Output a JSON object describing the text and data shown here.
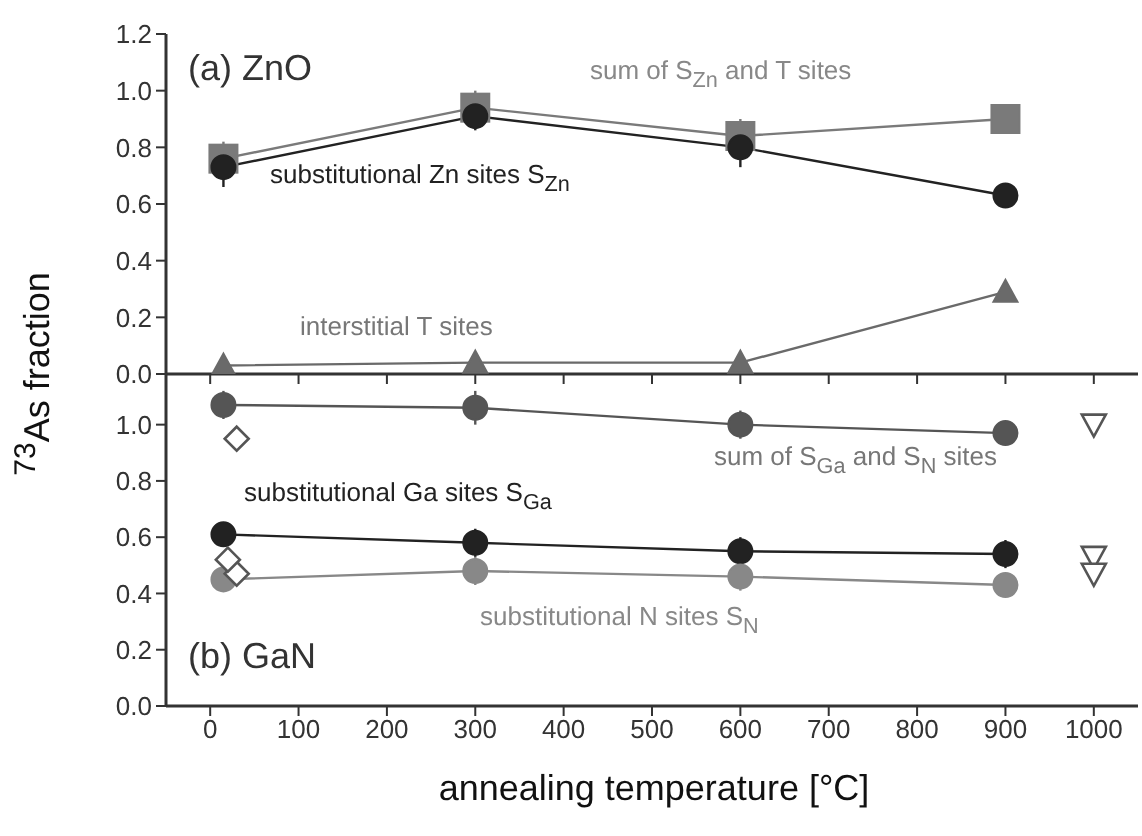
{
  "chart_data": [
    {
      "type": "line",
      "title": "(a) ZnO",
      "xlim": [
        -50,
        1050
      ],
      "xticks": [
        0,
        100,
        200,
        300,
        400,
        500,
        600,
        700,
        800,
        900,
        1000
      ],
      "ylim": [
        0,
        1.2
      ],
      "yticks": [
        {
          "value": 0,
          "label": "0.0"
        },
        {
          "value": 0.2,
          "label": "0.2"
        },
        {
          "value": 0.4,
          "label": "0.4"
        },
        {
          "value": 0.6,
          "label": "0.6"
        },
        {
          "value": 0.8,
          "label": "0.8"
        },
        {
          "value": 1.0,
          "label": "1.0"
        },
        {
          "value": 1.2,
          "label": "1.2"
        }
      ],
      "tick_labels": "y",
      "x": [
        15,
        300,
        600,
        900
      ],
      "series": [
        {
          "color": "#7a7a7a",
          "marker": "square",
          "values": [
            0.76,
            0.94,
            0.84,
            0.9
          ],
          "errors": [
            0.06,
            0.06,
            0.06,
            0.04
          ]
        },
        {
          "color": "#222222",
          "marker": "circle",
          "values": [
            0.73,
            0.91,
            0.8,
            0.63
          ],
          "errors": [
            0.07,
            0.05,
            0.07,
            0.02
          ]
        },
        {
          "color": "#6a6a6a",
          "marker": "triangle",
          "values": [
            0.03,
            0.04,
            0.04,
            0.29
          ],
          "errors": [
            0.01,
            0.01,
            0.01,
            0.02
          ]
        }
      ],
      "annotations": [
        "sum of S$_{Zn}$ and T  sites",
        "substitutional Zn sites S$_{Zn}$",
        "interstitial T sites"
      ]
    },
    {
      "type": "line",
      "title": "(b) GaN",
      "xlabel": "annealing temperature [°C]",
      "ylabel": "$^{73}$As fraction",
      "xlim": [
        -50,
        1050
      ],
      "xticks": [
        0,
        100,
        200,
        300,
        400,
        500,
        600,
        700,
        800,
        900,
        1000
      ],
      "ylim": [
        0,
        1.18
      ],
      "yticks": [
        {
          "value": 0,
          "label": "0.0"
        },
        {
          "value": 0.2,
          "label": "0.2"
        },
        {
          "value": 0.4,
          "label": "0.4"
        },
        {
          "value": 0.6,
          "label": "0.6"
        },
        {
          "value": 0.8,
          "label": "0.8"
        },
        {
          "value": 1.0,
          "label": "1.0"
        }
      ],
      "x": [
        15,
        300,
        600,
        900
      ],
      "series": [
        {
          "color": "#555555",
          "marker": "circle",
          "values": [
            1.07,
            1.06,
            1.0,
            0.97
          ],
          "errors": [
            0.05,
            0.06,
            0.05,
            0.04
          ]
        },
        {
          "color": "#222222",
          "marker": "circle",
          "values": [
            0.61,
            0.58,
            0.55,
            0.54
          ],
          "errors": [
            0.04,
            0.05,
            0.05,
            0.05
          ]
        },
        {
          "color": "#888888",
          "marker": "circle",
          "values": [
            0.45,
            0.48,
            0.46,
            0.43
          ],
          "errors": [
            0.03,
            0.05,
            0.05,
            0.04
          ]
        },
        {
          "type": "scatter",
          "color": "#555555",
          "marker": "diamond",
          "x": [
            30,
            30,
            20
          ],
          "values": [
            0.95,
            0.47,
            0.52
          ]
        },
        {
          "type": "scatter",
          "color": "#555555",
          "marker": "triangle",
          "x": [
            1000,
            1000,
            1000
          ],
          "values": [
            1.0,
            0.53,
            0.47
          ]
        }
      ],
      "annotations": [
        "sum of S$_{Ga}$ and S$_{N}$ sites",
        "substitutional Ga sites S$_{Ga}$",
        "substitutional N sites S$_{N}$"
      ]
    }
  ]
}
